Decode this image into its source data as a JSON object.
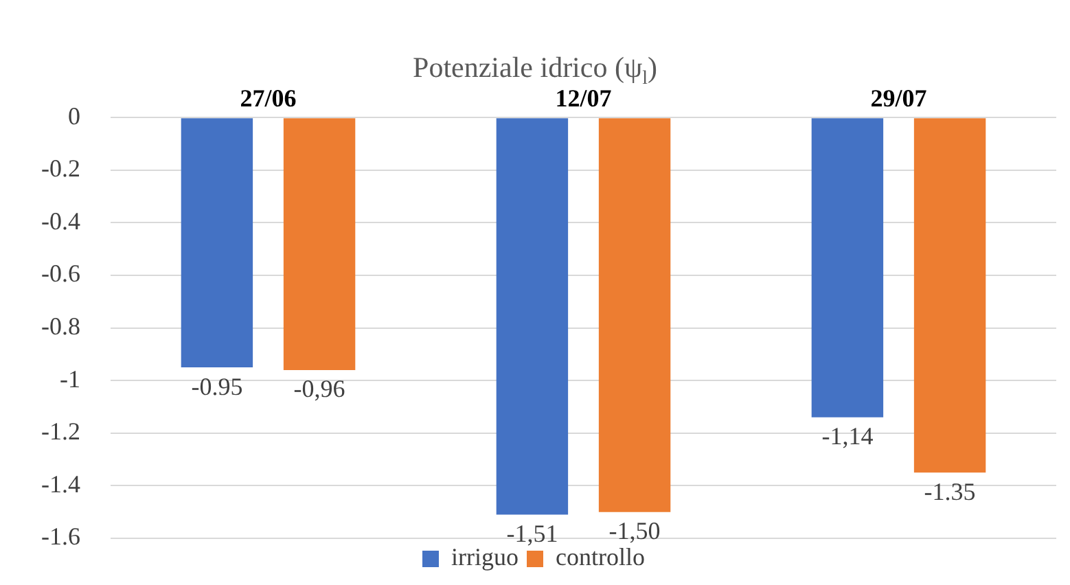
{
  "chart_data": {
    "type": "bar",
    "title": "Potenziale idrico (ψ$_{l}$)",
    "categories": [
      "27/06",
      "12/07",
      "29/07"
    ],
    "series": [
      {
        "name": "irriguo",
        "color": "#4472c4",
        "values": [
          -0.95,
          -1.51,
          -1.14
        ],
        "value_labels": [
          "-0.95",
          "-1,51",
          "-1,14"
        ]
      },
      {
        "name": "controllo",
        "color": "#ed7d31",
        "values": [
          -0.96,
          -1.5,
          -1.35
        ],
        "value_labels": [
          "-0,96",
          "-1,50",
          "-1.35"
        ]
      }
    ],
    "ylim": [
      -1.6,
      0
    ],
    "yticks": [
      0,
      -0.2,
      -0.4,
      -0.6,
      -0.8,
      -1,
      -1.2,
      -1.4,
      -1.6
    ],
    "grid": "y",
    "legend": "bottom"
  }
}
